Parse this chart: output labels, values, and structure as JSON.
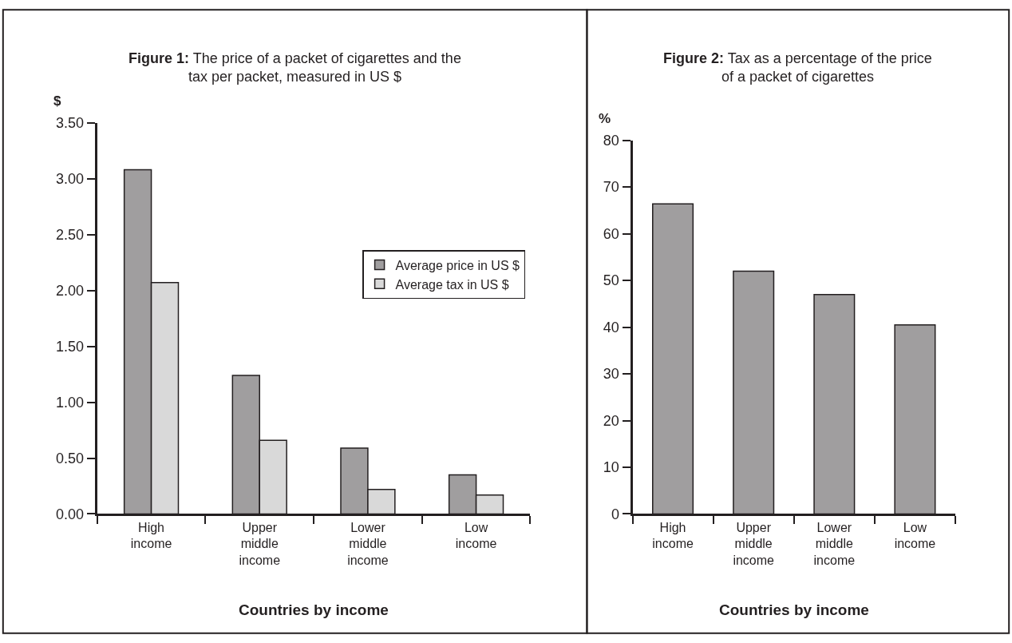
{
  "chart_data": [
    {
      "type": "bar",
      "title": "Figure 1: The price of a packet of cigarettes and the tax per packet, measured in US $",
      "xlabel": "Countries by income",
      "ylabel": "$",
      "categories": [
        "High income",
        "Upper middle income",
        "Lower middle income",
        "Low income"
      ],
      "series": [
        {
          "name": "Average price in US $",
          "color": "#a09e9f",
          "values": [
            3.08,
            1.24,
            0.59,
            0.35
          ]
        },
        {
          "name": "Average tax in US $",
          "color": "#d9d9d9",
          "values": [
            2.07,
            0.66,
            0.22,
            0.17
          ]
        }
      ],
      "ylim": [
        0,
        3.5
      ],
      "yticks": [
        {
          "value": 0,
          "label": "0.00"
        },
        {
          "value": 0.5,
          "label": "0.50"
        },
        {
          "value": 1,
          "label": "1.00"
        },
        {
          "value": 1.5,
          "label": "1.50"
        },
        {
          "value": 2,
          "label": "2.00"
        },
        {
          "value": 2.5,
          "label": "2.50"
        },
        {
          "value": 3,
          "label": "3.00"
        },
        {
          "value": 3.5,
          "label": "3.50"
        }
      ],
      "legend": "right"
    },
    {
      "type": "bar",
      "title": "Figure 2: Tax as a percentage of the price of a packet of cigarettes",
      "xlabel": "Countries by income",
      "ylabel": "%",
      "categories": [
        "High income",
        "Upper middle income",
        "Lower middle income",
        "Low income"
      ],
      "values": [
        66.4,
        52.0,
        47.0,
        40.5
      ],
      "color": "#a09e9f",
      "ylim": [
        0,
        80
      ],
      "yticks": [
        0,
        10,
        20,
        30,
        40,
        50,
        60,
        70,
        80
      ],
      "legend": false
    }
  ]
}
